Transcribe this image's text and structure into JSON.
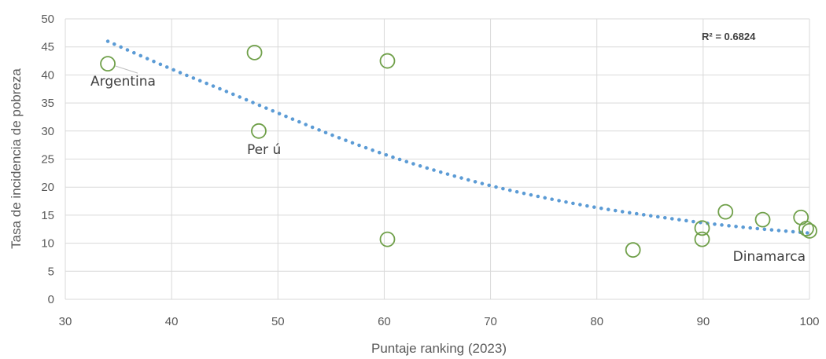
{
  "chart_data": {
    "type": "scatter",
    "xlabel": "Puntaje ranking (2023)",
    "ylabel": "Tasa de incidencia de pobreza",
    "xlim": [
      30,
      100
    ],
    "ylim": [
      0,
      50
    ],
    "x_ticks": [
      "30",
      "40",
      "50",
      "60",
      "70",
      "80",
      "90",
      "100"
    ],
    "y_ticks": [
      "0",
      "5",
      "10",
      "15",
      "20",
      "25",
      "30",
      "35",
      "40",
      "45",
      "50"
    ],
    "grid": true,
    "points": [
      {
        "x": 34,
        "y": 42
      },
      {
        "x": 47.8,
        "y": 44
      },
      {
        "x": 48.2,
        "y": 30
      },
      {
        "x": 60.3,
        "y": 42.5
      },
      {
        "x": 60.3,
        "y": 10.7
      },
      {
        "x": 83.4,
        "y": 8.8
      },
      {
        "x": 89.9,
        "y": 12.7
      },
      {
        "x": 89.9,
        "y": 10.7
      },
      {
        "x": 92.1,
        "y": 15.6
      },
      {
        "x": 95.6,
        "y": 14.2
      },
      {
        "x": 99.2,
        "y": 14.6
      },
      {
        "x": 99.7,
        "y": 12.6
      },
      {
        "x": 100,
        "y": 12.2
      }
    ],
    "trendline": {
      "style": "dotted",
      "r2_label": "R² = 0.6824",
      "x": [
        34,
        40,
        45,
        50,
        55,
        60,
        65,
        70,
        75,
        80,
        85,
        90,
        95,
        100
      ],
      "y": [
        46,
        41,
        37.2,
        33.2,
        29.3,
        25.8,
        22.8,
        20.2,
        18.1,
        16.3,
        14.9,
        13.6,
        12.6,
        11.8
      ]
    },
    "annotations": [
      {
        "text": "Argentina",
        "x": 34,
        "y": 42
      },
      {
        "text": "Per ú",
        "x": 48.2,
        "y": 30
      },
      {
        "text": "Dinamarca",
        "x": 100,
        "y": 12.2
      }
    ],
    "colors": {
      "marker": "#70a04a",
      "trend": "#5b9bd5",
      "grid": "#d9d9d9",
      "text": "#595959"
    }
  }
}
